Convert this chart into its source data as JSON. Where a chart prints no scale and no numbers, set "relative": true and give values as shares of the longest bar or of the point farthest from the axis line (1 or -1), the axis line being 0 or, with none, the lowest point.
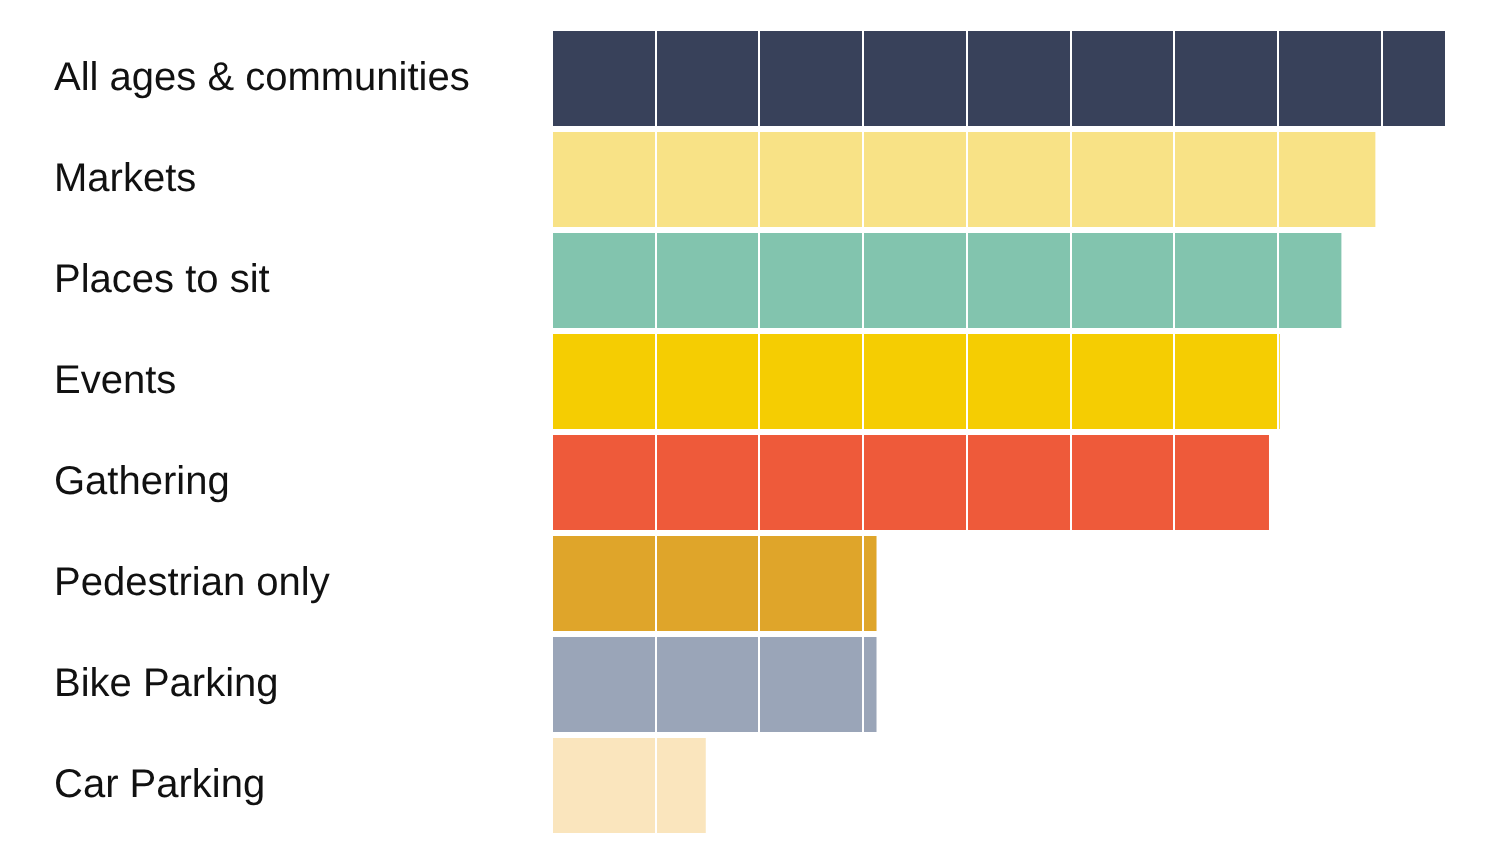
{
  "chart_data": {
    "type": "bar",
    "orientation": "horizontal",
    "relative": true,
    "grid": "x",
    "categories": [
      "All ages & communities",
      "Markets",
      "Places to sit",
      "Events",
      "Gathering",
      "Pedestrian only",
      "Bike Parking",
      "Car Parking"
    ],
    "values": [
      1,
      0.921,
      0.883,
      0.814,
      0.802,
      0.363,
      0.363,
      0.172
    ],
    "colors": [
      "#38415a",
      "#f8e286",
      "#82c4ae",
      "#f5cd02",
      "#ee5a3a",
      "#dfa52a",
      "#9aa5b8",
      "#fae5bd"
    ]
  }
}
